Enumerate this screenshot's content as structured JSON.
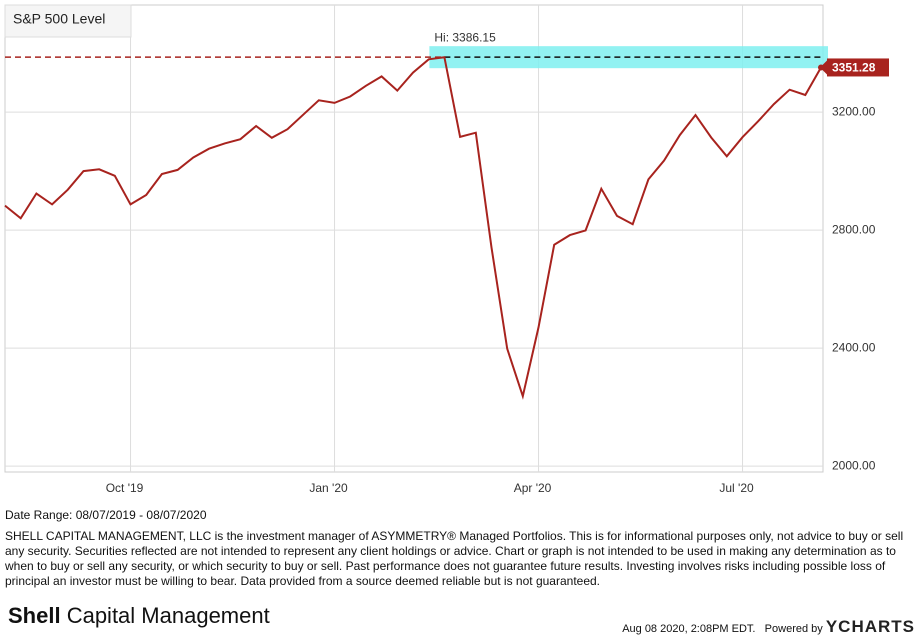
{
  "chart_data": {
    "type": "line",
    "categories": [
      null,
      null,
      null,
      null,
      null,
      null,
      null,
      null,
      "Oct '19",
      null,
      null,
      null,
      null,
      null,
      null,
      null,
      null,
      null,
      null,
      null,
      null,
      "Jan '20",
      null,
      null,
      null,
      null,
      null,
      null,
      null,
      null,
      null,
      null,
      null,
      null,
      "Apr '20",
      null,
      null,
      null,
      null,
      null,
      null,
      null,
      null,
      null,
      null,
      null,
      null,
      "Jul '20",
      null,
      null,
      null,
      null,
      null
    ],
    "series": [
      {
        "name": "S&P 500 Level",
        "color": "#a8231e",
        "values": [
          2883,
          2840,
          2924,
          2887,
          2937,
          3000,
          3006,
          2984,
          2887,
          2919,
          2990,
          3004,
          3046,
          3076,
          3094,
          3108,
          3153,
          3113,
          3142,
          3191,
          3240,
          3231,
          3253,
          3289,
          3321,
          3273,
          3334,
          3379,
          3386,
          3116,
          3130,
          2741,
          2398,
          2237,
          2470,
          2750,
          2783,
          2799,
          2940,
          2848,
          2820,
          2972,
          3036,
          3122,
          3190,
          3114,
          3050,
          3115,
          3169,
          3227,
          3276,
          3258,
          3351.28
        ]
      }
    ],
    "ylim": [
      1980,
      3563
    ],
    "yticks": [
      {
        "value": 2000,
        "label": "2000.00"
      },
      {
        "value": 2400,
        "label": "2400.00"
      },
      {
        "value": 2800,
        "label": "2800.00"
      },
      {
        "value": 3200,
        "label": "3200.00"
      }
    ],
    "grid": true,
    "annotation": {
      "value": 3386.15,
      "label": "Hi: 3386.15"
    }
  },
  "footer": {
    "date_range": "Date Range: 08/07/2019 - 08/07/2020",
    "disclaimer": "SHELL CAPITAL MANAGEMENT, LLC is the investment manager of ASYMMETRY® Managed Portfolios. This is for informational purposes only, not advice to buy or sell any security. Securities reflected are not intended to represent any client holdings or advice. Chart or graph is not intended to be used in making any determination as to when to buy or sell any security, or which security to buy or sell. Past performance does not guarantee future results. Investing involves risks including possible loss of principal an investor must be willing to bear. Data provided from a source deemed reliable but is not guaranteed.",
    "logo_bold": "Shell",
    "logo_rest": "Capital Management",
    "timestamp": "Aug 08 2020, 2:08PM EDT.",
    "powered_by": "Powered by",
    "brand": "YCHARTS"
  }
}
